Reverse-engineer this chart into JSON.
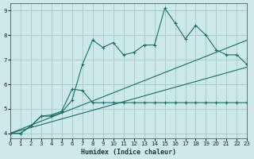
{
  "xlabel": "Humidex (Indice chaleur)",
  "bg_color": "#cce8e8",
  "grid_color": "#aacccc",
  "line_color": "#1a6e6a",
  "xlim": [
    0,
    23
  ],
  "ylim": [
    3.8,
    9.3
  ],
  "xticks": [
    0,
    1,
    2,
    3,
    4,
    5,
    6,
    7,
    8,
    9,
    10,
    11,
    12,
    13,
    14,
    15,
    16,
    17,
    18,
    19,
    20,
    21,
    22,
    23
  ],
  "yticks": [
    4,
    5,
    6,
    7,
    8,
    9
  ],
  "line1_x": [
    0,
    1,
    2,
    3,
    4,
    5,
    6,
    7,
    8,
    9,
    10,
    11,
    12,
    13,
    14,
    15,
    16,
    17,
    18,
    19,
    20,
    21,
    22,
    23
  ],
  "line1_y": [
    4.0,
    4.0,
    4.3,
    4.7,
    4.7,
    4.85,
    5.35,
    6.8,
    7.8,
    7.5,
    7.7,
    7.2,
    7.3,
    7.6,
    7.6,
    9.1,
    8.5,
    7.85,
    8.4,
    8.0,
    7.4,
    7.2,
    7.2,
    6.8
  ],
  "line2_x": [
    0,
    1,
    2,
    3,
    4,
    5,
    6,
    7,
    8,
    9,
    10,
    11,
    12,
    13,
    14,
    15,
    16,
    17,
    18,
    19,
    20,
    21,
    22,
    23
  ],
  "line2_y": [
    4.0,
    4.0,
    4.3,
    4.7,
    4.75,
    4.9,
    5.8,
    5.75,
    5.25,
    5.25,
    5.25,
    5.25,
    5.25,
    5.25,
    5.25,
    5.25,
    5.25,
    5.25,
    5.25,
    5.25,
    5.25,
    5.25,
    5.25,
    5.25
  ],
  "line3_x": [
    0,
    23
  ],
  "line3_y": [
    4.0,
    7.8
  ],
  "line4_x": [
    0,
    23
  ],
  "line4_y": [
    4.0,
    6.7
  ]
}
